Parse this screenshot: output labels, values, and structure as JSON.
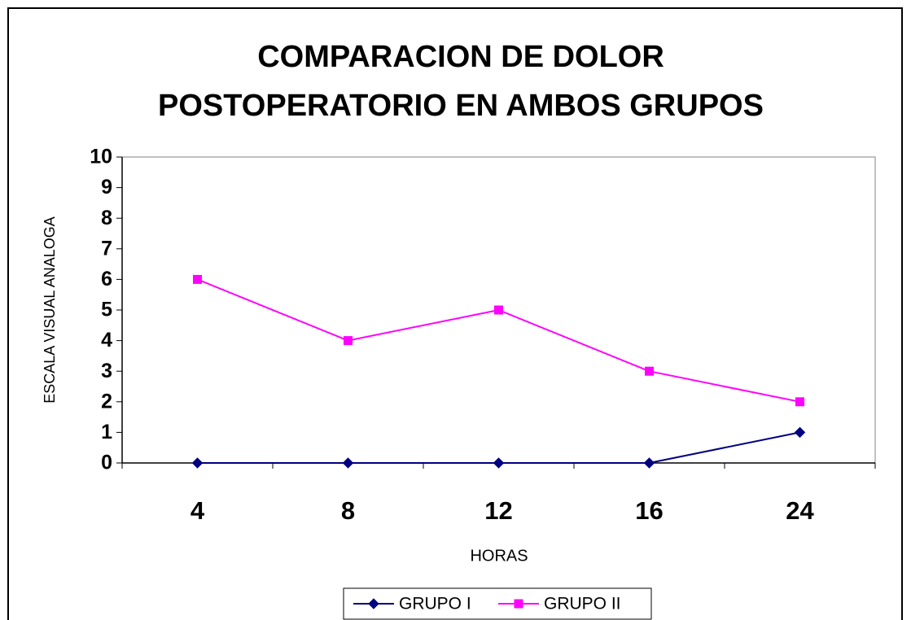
{
  "chart_data": {
    "type": "line",
    "title": [
      "COMPARACION DE DOLOR",
      "POSTOPERATORIO EN AMBOS GRUPOS"
    ],
    "x_label": "HORAS",
    "y_label": "ESCALA VISUAL ANALOGA",
    "categories": [
      "4",
      "8",
      "12",
      "16",
      "24"
    ],
    "series": [
      {
        "name": "GRUPO I",
        "color": "#000080",
        "marker": "diamond",
        "values": [
          0,
          0,
          0,
          0,
          1
        ]
      },
      {
        "name": "GRUPO II",
        "color": "#ff00ff",
        "marker": "square",
        "values": [
          6,
          4,
          5,
          3,
          2
        ]
      }
    ],
    "ylim": [
      0,
      10
    ],
    "yticks": [
      0,
      1,
      2,
      3,
      4,
      5,
      6,
      7,
      8,
      9,
      10
    ],
    "grid": false,
    "legend": "bottom"
  }
}
